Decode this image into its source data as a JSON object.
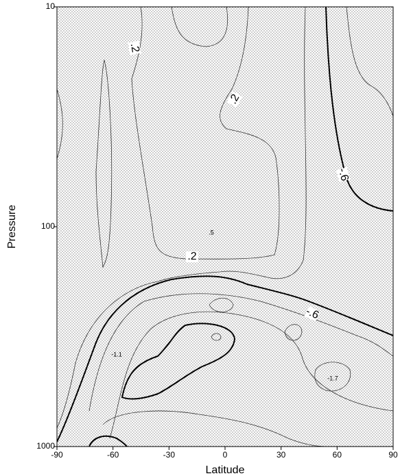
{
  "chart_data": {
    "type": "contour",
    "xlabel": "Latitude",
    "ylabel": "Pressure",
    "xlim": [
      -90,
      90
    ],
    "xticks": [
      -90,
      -60,
      -30,
      0,
      30,
      60,
      90
    ],
    "ylim": [
      1000,
      10
    ],
    "yticks": [
      10,
      100,
      1000
    ],
    "log_y": true,
    "annotations": [
      ".2",
      ".2",
      ".2",
      "-.6",
      "-.6",
      ".5",
      "-1.1",
      "-1.7"
    ]
  }
}
